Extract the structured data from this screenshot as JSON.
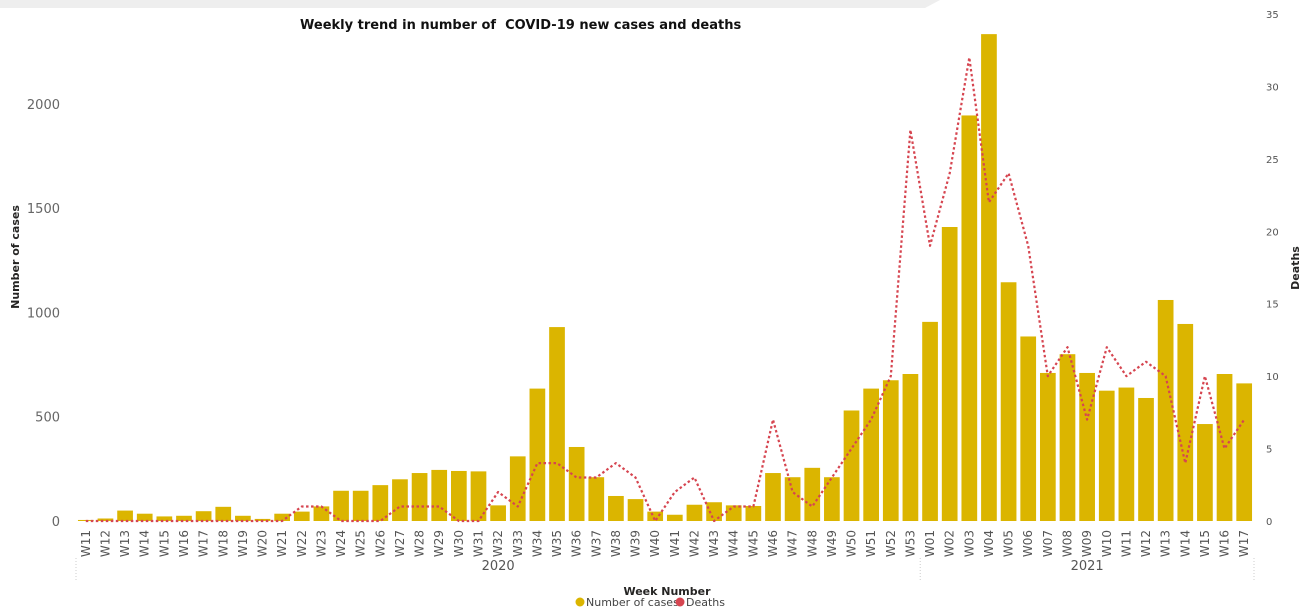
{
  "chart_data": {
    "type": "bar",
    "title": "Weekly trend in number of  COVID-19 new cases and deaths",
    "xlabel": "Week Number",
    "ylabel": "Number of cases",
    "y2label": "Deaths",
    "ylim": [
      0,
      2350
    ],
    "y2lim": [
      0,
      35
    ],
    "yticks": [
      0,
      500,
      1000,
      1500,
      2000
    ],
    "y2ticks": [
      0,
      5,
      10,
      15,
      20,
      25,
      30,
      35
    ],
    "categories": [
      "W11",
      "W12",
      "W13",
      "W14",
      "W15",
      "W16",
      "W17",
      "W18",
      "W19",
      "W20",
      "W21",
      "W22",
      "W23",
      "W24",
      "W25",
      "W26",
      "W27",
      "W28",
      "W29",
      "W30",
      "W31",
      "W32",
      "W33",
      "W34",
      "W35",
      "W36",
      "W37",
      "W38",
      "W39",
      "W40",
      "W41",
      "W42",
      "W43",
      "W44",
      "W45",
      "W46",
      "W47",
      "W48",
      "W49",
      "W50",
      "W51",
      "W52",
      "W53",
      "W01",
      "W02",
      "W03",
      "W04",
      "W05",
      "W06",
      "W07",
      "W08",
      "W09",
      "W10",
      "W11",
      "W12",
      "W13",
      "W14",
      "W15",
      "W16",
      "W17"
    ],
    "year_groups": [
      {
        "label": "2020",
        "count": 43
      },
      {
        "label": "2021",
        "count": 17
      }
    ],
    "series": [
      {
        "name": "Number of cases",
        "type": "bar",
        "axis": "left",
        "color": "#DBB500",
        "values": [
          5,
          12,
          50,
          35,
          22,
          25,
          47,
          68,
          25,
          10,
          35,
          45,
          70,
          145,
          145,
          172,
          200,
          230,
          245,
          240,
          238,
          75,
          310,
          635,
          930,
          355,
          210,
          120,
          105,
          45,
          30,
          78,
          90,
          75,
          72,
          230,
          210,
          255,
          210,
          530,
          635,
          675,
          705,
          955,
          1410,
          1945,
          2335,
          1145,
          885,
          710,
          800,
          710,
          625,
          640,
          590,
          1060,
          945,
          465,
          705,
          660
        ]
      },
      {
        "name": "Deaths",
        "type": "line",
        "style": "dotted",
        "axis": "right",
        "color": "#D64550",
        "values": [
          0,
          0,
          0,
          0,
          0,
          0,
          0,
          0,
          0,
          0,
          0,
          1,
          1,
          0,
          0,
          0,
          1,
          1,
          1,
          0,
          0,
          2,
          1,
          4,
          4,
          3,
          3,
          4,
          3,
          0,
          2,
          3,
          0,
          1,
          1,
          7,
          2,
          1,
          3,
          5,
          7,
          10,
          27,
          19,
          24,
          32,
          22,
          24,
          19,
          10,
          12,
          7,
          12,
          10,
          11,
          10,
          4,
          10,
          5,
          7
        ]
      }
    ],
    "legend_position": "bottom",
    "grid": false
  }
}
